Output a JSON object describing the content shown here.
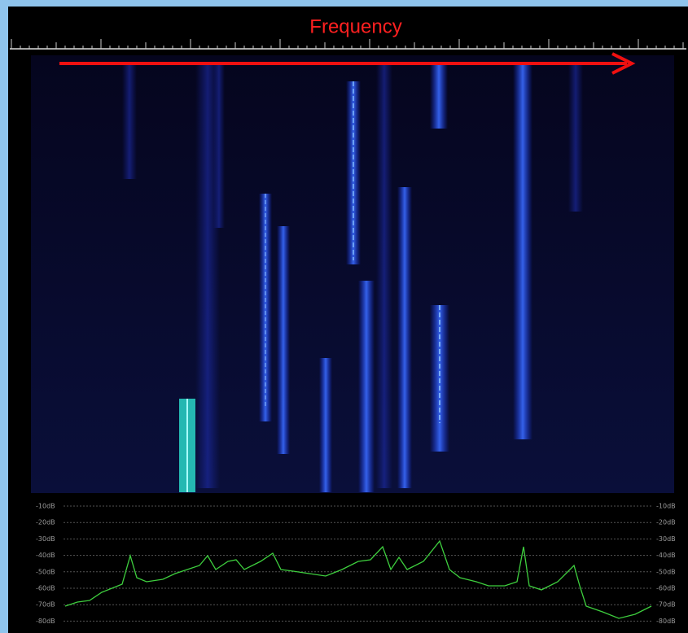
{
  "header": {
    "annotation": "Frequency"
  },
  "spectrum": {
    "db_labels": [
      "-10dB",
      "-20dB",
      "-30dB",
      "-40dB",
      "-50dB",
      "-60dB",
      "-70dB",
      "-80dB"
    ]
  }
}
